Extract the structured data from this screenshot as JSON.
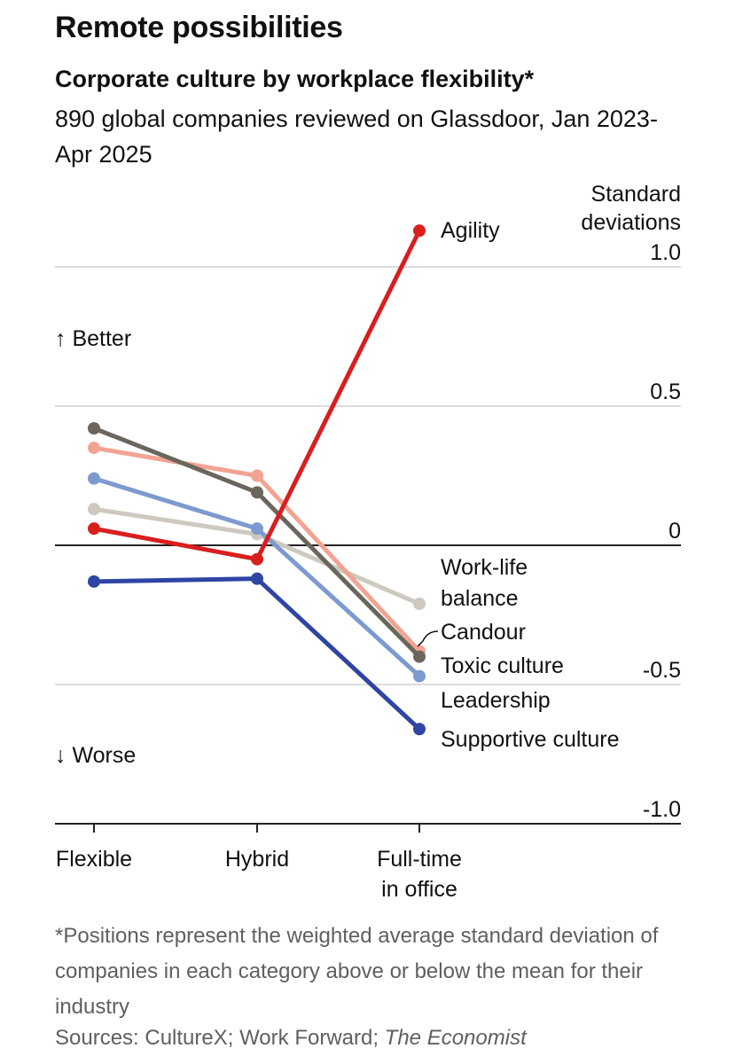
{
  "title": "Remote possibilities",
  "subtitle": "Corporate culture by workplace flexibility*",
  "description": "890 global companies reviewed on Glassdoor, Jan 2023-Apr 2025",
  "footnote": "*Positions represent the weighted average standard deviation of companies in each category above or below the mean for their industry",
  "sources_prefix": "Sources: CultureX; Work Forward; ",
  "sources_italic": "The Economist",
  "chart_data": {
    "type": "line",
    "ylabel": [
      "Standard",
      "deviations"
    ],
    "ylim": [
      -1.0,
      1.0
    ],
    "yticks": [
      {
        "value": 1.0,
        "label": "1.0"
      },
      {
        "value": 0.5,
        "label": "0.5"
      },
      {
        "value": 0,
        "label": "0"
      },
      {
        "value": -0.5,
        "label": "-0.5"
      },
      {
        "value": -1.0,
        "label": "-1.0"
      }
    ],
    "categories": [
      "Flexible",
      "Hybrid",
      "Full-time in office"
    ],
    "category_labels": [
      [
        "Flexible"
      ],
      [
        "Hybrid"
      ],
      [
        "Full-time",
        "in office"
      ]
    ],
    "annotations": {
      "better": "↑ Better",
      "worse": "↓ Worse"
    },
    "grid": true,
    "series": [
      {
        "name": "Work-life balance",
        "label_lines": [
          "Work-life",
          "balance"
        ],
        "color": "#cdc9bf",
        "values": [
          0.13,
          0.04,
          -0.21
        ]
      },
      {
        "name": "Supportive culture",
        "label_lines": [
          "Supportive culture"
        ],
        "color": "#2e45a3",
        "values": [
          -0.13,
          -0.12,
          -0.66
        ]
      },
      {
        "name": "Leadership",
        "label_lines": [
          "Leadership"
        ],
        "color": "#7c9ad0",
        "values": [
          0.24,
          0.06,
          -0.47
        ]
      },
      {
        "name": "Candour",
        "label_lines": [
          "Candour"
        ],
        "color": "#f2a392",
        "values": [
          0.35,
          0.25,
          -0.38
        ]
      },
      {
        "name": "Toxic culture",
        "label_lines": [
          "Toxic culture"
        ],
        "color": "#6a665c",
        "values": [
          0.42,
          0.19,
          -0.4
        ]
      },
      {
        "name": "Agility",
        "label_lines": [
          "Agility"
        ],
        "color": "#d91e1e",
        "values": [
          0.06,
          -0.05,
          1.13
        ]
      }
    ]
  }
}
